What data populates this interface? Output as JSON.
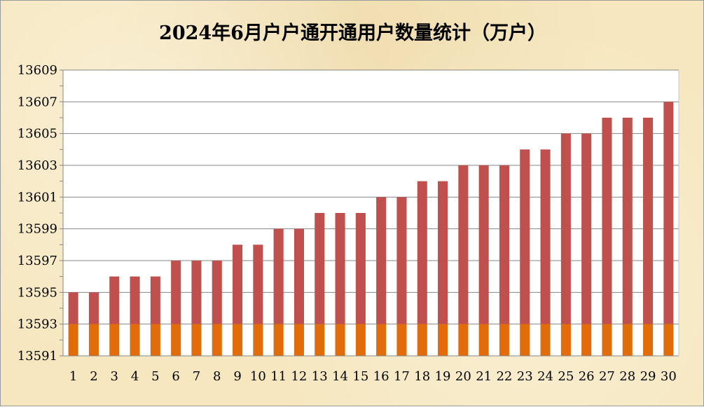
{
  "chart_data": {
    "type": "bar",
    "title": "2024年6月户户通开通用户数量统计（万户）",
    "xlabel": "",
    "ylabel": "",
    "categories": [
      "1",
      "2",
      "3",
      "4",
      "5",
      "6",
      "7",
      "8",
      "9",
      "10",
      "11",
      "12",
      "13",
      "14",
      "15",
      "16",
      "17",
      "18",
      "19",
      "20",
      "21",
      "22",
      "23",
      "24",
      "25",
      "26",
      "27",
      "28",
      "29",
      "30"
    ],
    "values": [
      13595,
      13595,
      13596,
      13596,
      13596,
      13597,
      13597,
      13597,
      13598,
      13598,
      13599,
      13599,
      13600,
      13600,
      13600,
      13601,
      13601,
      13602,
      13602,
      13603,
      13603,
      13603,
      13604,
      13604,
      13605,
      13605,
      13606,
      13606,
      13606,
      13607
    ],
    "ylim": [
      13591,
      13609
    ],
    "yticks": [
      13591,
      13593,
      13595,
      13597,
      13599,
      13601,
      13603,
      13605,
      13607,
      13609
    ],
    "grid": true,
    "legend": "none",
    "colors": {
      "bar_upper": "#c0504d",
      "bar_lower": "#e36c0a",
      "plot_background": "#ffffff",
      "gridline": "#868686"
    }
  }
}
